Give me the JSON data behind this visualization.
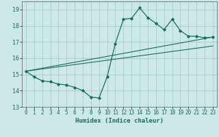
{
  "xlabel": "Humidex (Indice chaleur)",
  "ylabel": "",
  "bg_color": "#cce8e8",
  "grid_color": "#aacece",
  "line_color": "#1a6b5a",
  "x_humidex": [
    0,
    1,
    2,
    3,
    4,
    5,
    6,
    7,
    8,
    9,
    10,
    11,
    12,
    13,
    14,
    15,
    16,
    17,
    18,
    19,
    20,
    21,
    22,
    23
  ],
  "y_curve": [
    15.2,
    14.85,
    14.6,
    14.55,
    14.4,
    14.35,
    14.2,
    14.0,
    13.6,
    13.55,
    14.85,
    16.9,
    18.4,
    18.45,
    19.1,
    18.5,
    18.15,
    17.75,
    18.4,
    17.7,
    17.35,
    17.35,
    17.25,
    17.3
  ],
  "y_line1_start": 15.2,
  "y_line1_end": 17.3,
  "y_line2_start": 15.2,
  "y_line2_end": 16.75,
  "x_line_start": 0,
  "x_line_end": 23,
  "ylim": [
    13.0,
    19.5
  ],
  "xlim": [
    -0.5,
    23.5
  ],
  "yticks": [
    13,
    14,
    15,
    16,
    17,
    18,
    19
  ],
  "xticks": [
    0,
    1,
    2,
    3,
    4,
    5,
    6,
    7,
    8,
    9,
    10,
    11,
    12,
    13,
    14,
    15,
    16,
    17,
    18,
    19,
    20,
    21,
    22,
    23
  ],
  "tick_fontsize": 5.5,
  "xlabel_fontsize": 6.5
}
